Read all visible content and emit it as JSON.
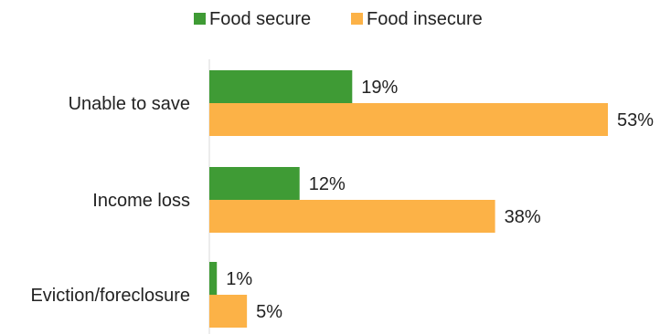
{
  "chart_data": {
    "type": "bar",
    "orientation": "horizontal",
    "categories": [
      "Unable to save",
      "Income loss",
      "Eviction/foreclosure"
    ],
    "series": [
      {
        "name": "Food secure",
        "values": [
          19,
          12,
          1
        ],
        "color": "#3f9b35"
      },
      {
        "name": "Food insecure",
        "values": [
          53,
          38,
          5
        ],
        "color": "#fcb247"
      }
    ],
    "value_suffix": "%",
    "xlim": [
      0,
      53
    ],
    "grid": false,
    "legend_position": "top"
  }
}
